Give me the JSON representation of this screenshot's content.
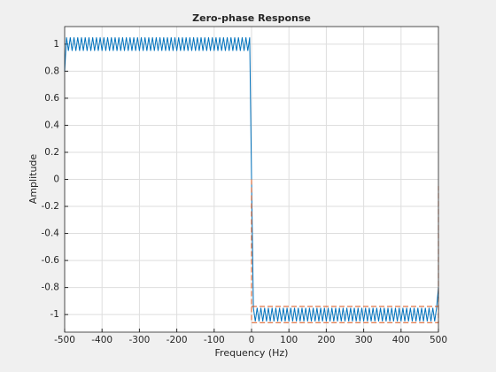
{
  "chart_data": {
    "type": "line",
    "title": "Zero-phase Response",
    "xlabel": "Frequency (Hz)",
    "ylabel": "Amplitude",
    "xlim": [
      -500,
      500
    ],
    "xticks": [
      -500,
      -400,
      -300,
      -200,
      -100,
      0,
      100,
      200,
      300,
      400,
      500
    ],
    "ylim": [
      -1.13,
      1.13
    ],
    "yticks": [
      -1,
      -0.8,
      -0.6,
      -0.4,
      -0.2,
      0,
      0.2,
      0.4,
      0.6,
      0.8,
      1
    ],
    "grid": true,
    "series": [
      {
        "color": "#0072bd",
        "style": "solid",
        "x": [
          -500,
          -495,
          -490,
          -485,
          -480,
          -475,
          -470,
          -465,
          -460,
          -455,
          -450,
          -445,
          -440,
          -435,
          -430,
          -425,
          -420,
          -415,
          -410,
          -405,
          -400,
          -395,
          -390,
          -385,
          -380,
          -375,
          -370,
          -365,
          -360,
          -355,
          -350,
          -345,
          -340,
          -335,
          -330,
          -325,
          -320,
          -315,
          -310,
          -305,
          -300,
          -295,
          -290,
          -285,
          -280,
          -275,
          -270,
          -265,
          -260,
          -255,
          -250,
          -245,
          -240,
          -235,
          -230,
          -225,
          -220,
          -215,
          -210,
          -205,
          -200,
          -195,
          -190,
          -185,
          -180,
          -175,
          -170,
          -165,
          -160,
          -155,
          -150,
          -145,
          -140,
          -135,
          -130,
          -125,
          -120,
          -115,
          -110,
          -105,
          -100,
          -95,
          -90,
          -85,
          -80,
          -75,
          -70,
          -65,
          -60,
          -55,
          -50,
          -45,
          -40,
          -35,
          -30,
          -25,
          -20,
          -15,
          -10,
          -5,
          0,
          5,
          10,
          15,
          20,
          25,
          30,
          35,
          40,
          45,
          50,
          55,
          60,
          65,
          70,
          75,
          80,
          85,
          90,
          95,
          100,
          105,
          110,
          115,
          120,
          125,
          130,
          135,
          140,
          145,
          150,
          155,
          160,
          165,
          170,
          175,
          180,
          185,
          190,
          195,
          200,
          205,
          210,
          215,
          220,
          225,
          230,
          235,
          240,
          245,
          250,
          255,
          260,
          265,
          270,
          275,
          280,
          285,
          290,
          295,
          300,
          305,
          310,
          315,
          320,
          325,
          330,
          335,
          340,
          345,
          350,
          355,
          360,
          365,
          370,
          375,
          380,
          385,
          390,
          395,
          400,
          405,
          410,
          415,
          420,
          425,
          430,
          435,
          440,
          445,
          450,
          455,
          460,
          465,
          470,
          475,
          480,
          485,
          490,
          495,
          500
        ],
        "values": [
          0.8,
          1.05,
          0.95,
          1.05,
          0.95,
          1.05,
          0.95,
          1.05,
          0.95,
          1.05,
          0.95,
          1.05,
          0.95,
          1.05,
          0.95,
          1.05,
          0.95,
          1.05,
          0.95,
          1.05,
          0.95,
          1.05,
          0.95,
          1.05,
          0.95,
          1.05,
          0.95,
          1.05,
          0.95,
          1.05,
          0.95,
          1.05,
          0.95,
          1.05,
          0.95,
          1.05,
          0.95,
          1.05,
          0.95,
          1.05,
          0.95,
          1.05,
          0.95,
          1.05,
          0.95,
          1.05,
          0.95,
          1.05,
          0.95,
          1.05,
          0.95,
          1.05,
          0.95,
          1.05,
          0.95,
          1.05,
          0.95,
          1.05,
          0.95,
          1.05,
          0.95,
          1.05,
          0.95,
          1.05,
          0.95,
          1.05,
          0.95,
          1.05,
          0.95,
          1.05,
          0.95,
          1.05,
          0.95,
          1.05,
          0.95,
          1.05,
          0.95,
          1.05,
          0.95,
          1.05,
          0.95,
          1.05,
          0.95,
          1.05,
          0.95,
          1.05,
          0.95,
          1.05,
          0.95,
          1.05,
          0.95,
          1.05,
          0.95,
          1.05,
          0.95,
          1.05,
          0.95,
          1.05,
          0.95,
          1.05,
          0,
          -0.95,
          -1.05,
          -0.95,
          -1.05,
          -0.95,
          -1.05,
          -0.95,
          -1.05,
          -0.95,
          -1.05,
          -0.95,
          -1.05,
          -0.95,
          -1.05,
          -0.95,
          -1.05,
          -0.95,
          -1.05,
          -0.95,
          -1.05,
          -0.95,
          -1.05,
          -0.95,
          -1.05,
          -0.95,
          -1.05,
          -0.95,
          -1.05,
          -0.95,
          -1.05,
          -0.95,
          -1.05,
          -0.95,
          -1.05,
          -0.95,
          -1.05,
          -0.95,
          -1.05,
          -0.95,
          -1.05,
          -0.95,
          -1.05,
          -0.95,
          -1.05,
          -0.95,
          -1.05,
          -0.95,
          -1.05,
          -0.95,
          -1.05,
          -0.95,
          -1.05,
          -0.95,
          -1.05,
          -0.95,
          -1.05,
          -0.95,
          -1.05,
          -0.95,
          -1.05,
          -0.95,
          -1.05,
          -0.95,
          -1.05,
          -0.95,
          -1.05,
          -0.95,
          -1.05,
          -0.95,
          -1.05,
          -0.95,
          -1.05,
          -0.95,
          -1.05,
          -0.95,
          -1.05,
          -0.95,
          -1.05,
          -0.95,
          -1.05,
          -0.95,
          -1.05,
          -0.95,
          -1.05,
          -0.95,
          -1.05,
          -0.95,
          -1.05,
          -0.95,
          -1.05,
          -0.95,
          -1.05,
          -0.95,
          -1.05,
          -0.95,
          -1.05,
          -0.95,
          -1.05,
          -0.95,
          -0.8
        ]
      },
      {
        "color": "#d95319",
        "style": "dashed",
        "x": [
          0,
          0,
          500,
          500
        ],
        "values": [
          0,
          -1.06,
          -1.06,
          -0.05
        ]
      },
      {
        "color": "#d95319",
        "style": "dashed",
        "x": [
          0,
          500
        ],
        "values": [
          -0.94,
          -0.94
        ]
      }
    ]
  }
}
